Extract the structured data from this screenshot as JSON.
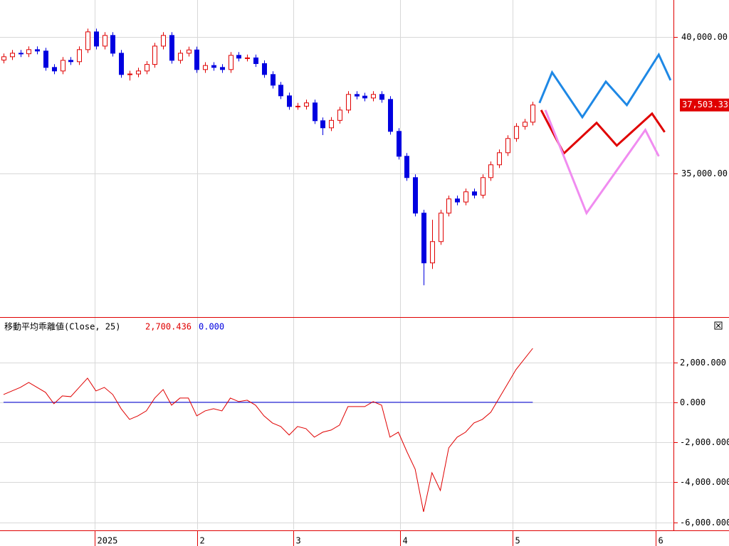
{
  "chart_data": [
    {
      "type": "candlestick",
      "xlim": [
        -0.42,
        79.75
      ],
      "xticks": [
        {
          "value": 10.85,
          "label": "2025"
        },
        {
          "value": 23.05,
          "label": "2"
        },
        {
          "value": 34.5,
          "label": "3"
        },
        {
          "value": 47.2,
          "label": "4"
        },
        {
          "value": 60.6,
          "label": "5"
        },
        {
          "value": 77.6,
          "label": "6"
        }
      ],
      "ylim": [
        29760,
        41350
      ],
      "yticks": [
        {
          "value": 35000,
          "label": "35,000.00"
        },
        {
          "value": 40000,
          "label": "40,000.00"
        }
      ],
      "up_color": "#e00000",
      "down_color": "#0000e0",
      "open": [
        39150,
        39271,
        39400,
        39380,
        39531,
        39480,
        38880,
        38750,
        39140,
        39090,
        39531,
        40182,
        39661,
        40052,
        39400,
        38620,
        38640,
        38750,
        38990,
        39661,
        40052,
        39140,
        39400,
        39520,
        38802,
        38950,
        38880,
        38802,
        39323,
        39220,
        39230,
        39020,
        38620,
        38229,
        37839,
        37448,
        37460,
        37580,
        36927,
        36667,
        36940,
        37318,
        37890,
        37830,
        37760,
        37890,
        37708,
        36537,
        35625,
        34844,
        33542,
        31719,
        32500,
        33542,
        34063,
        33950,
        34323,
        34200,
        34844,
        35313,
        35755,
        36276,
        36719,
        36875
      ],
      "high": [
        39391,
        39520,
        39520,
        39651,
        39651,
        39600,
        39000,
        39260,
        39260,
        39651,
        40302,
        40302,
        40172,
        40172,
        39520,
        38760,
        38870,
        39110,
        39781,
        40172,
        40172,
        39520,
        39640,
        39640,
        39070,
        39070,
        39000,
        39443,
        39443,
        39350,
        39350,
        39140,
        38740,
        38349,
        37959,
        37580,
        37700,
        37700,
        37047,
        37060,
        37438,
        38010,
        38010,
        37950,
        38010,
        38010,
        37828,
        36657,
        35745,
        34964,
        33662,
        33300,
        33662,
        34183,
        34183,
        34443,
        34443,
        34964,
        35433,
        35875,
        36396,
        36839,
        36995,
        37623
      ],
      "low": [
        39030,
        39151,
        39260,
        39260,
        39360,
        38760,
        38630,
        38630,
        38970,
        38970,
        39411,
        39541,
        39541,
        39280,
        38500,
        38400,
        38520,
        38630,
        38870,
        39541,
        39020,
        39020,
        39280,
        38682,
        38682,
        38760,
        38682,
        38682,
        39100,
        39100,
        38900,
        38500,
        38109,
        37719,
        37328,
        37328,
        37340,
        36807,
        36400,
        36547,
        36820,
        37198,
        37710,
        37640,
        37640,
        37588,
        36417,
        35505,
        34724,
        33422,
        30900,
        31500,
        32380,
        33422,
        33830,
        33830,
        34080,
        34080,
        34724,
        35193,
        35635,
        36156,
        36599,
        36755
      ],
      "close": [
        39271,
        39400,
        39380,
        39531,
        39480,
        38880,
        38750,
        39140,
        39090,
        39531,
        40182,
        39661,
        40052,
        39400,
        38620,
        38640,
        38750,
        38990,
        39661,
        40052,
        39140,
        39400,
        39520,
        38802,
        38950,
        38880,
        38802,
        39323,
        39220,
        39230,
        39020,
        38620,
        38229,
        37839,
        37448,
        37460,
        37580,
        36927,
        36667,
        36940,
        37318,
        37890,
        37830,
        37760,
        37890,
        37708,
        36537,
        35625,
        34844,
        33542,
        31719,
        32500,
        33542,
        34063,
        33950,
        34323,
        34200,
        34844,
        35313,
        35755,
        36276,
        36719,
        36875,
        37503.33
      ],
      "last_price": {
        "value": 37503.33,
        "label": "37,503.33"
      },
      "projections": [
        {
          "color": "#1e88e5",
          "x": [
            63.8,
            65.3,
            68.9,
            71.7,
            74.2,
            78.0,
            79.4
          ],
          "values": [
            37578,
            38698,
            37057,
            38359,
            37500,
            39349,
            38411
          ]
        },
        {
          "color": "#e00000",
          "x": [
            64.0,
            66.7,
            70.6,
            73.0,
            77.2,
            78.7
          ],
          "values": [
            37318,
            35729,
            36849,
            36016,
            37188,
            36510
          ]
        },
        {
          "color": "#f08cf0",
          "x": [
            64.5,
            69.4,
            76.4,
            78.0
          ],
          "values": [
            37318,
            33542,
            36589,
            35625
          ]
        }
      ]
    },
    {
      "type": "line",
      "indicator_name": "移動平均乖離値(Close, 25)",
      "last_values": [
        {
          "value": 2700.436,
          "label": "2,700.436",
          "color": "#e00000"
        },
        {
          "value": 0,
          "label": "0.000",
          "color": "#0000e0"
        }
      ],
      "xlim": [
        -0.42,
        79.75
      ],
      "ylim": [
        -6370,
        4230
      ],
      "yticks": [
        {
          "value": -6000,
          "label": "-6,000.000"
        },
        {
          "value": -4000,
          "label": "-4,000.000"
        },
        {
          "value": -2000,
          "label": "-2,000.000"
        },
        {
          "value": 0,
          "label": "0.000"
        },
        {
          "value": 2000,
          "label": "2,000.000"
        }
      ],
      "color": "#e00000",
      "values": [
        391,
        569,
        747,
        996,
        747,
        498,
        -71,
        320,
        284,
        747,
        1209,
        569,
        747,
        391,
        -320,
        -853,
        -676,
        -427,
        213,
        640,
        -142,
        213,
        213,
        -676,
        -427,
        -320,
        -427,
        213,
        36,
        107,
        -142,
        -676,
        -1031,
        -1209,
        -1636,
        -1209,
        -1316,
        -1742,
        -1493,
        -1387,
        -1138,
        -213,
        -213,
        -213,
        36,
        -142,
        -1742,
        -1493,
        -2453,
        -3342,
        -5476,
        -3520,
        -4409,
        -2276,
        -1742,
        -1493,
        -1031,
        -853,
        -498,
        213,
        924,
        1636,
        2169,
        2700.436
      ]
    }
  ]
}
